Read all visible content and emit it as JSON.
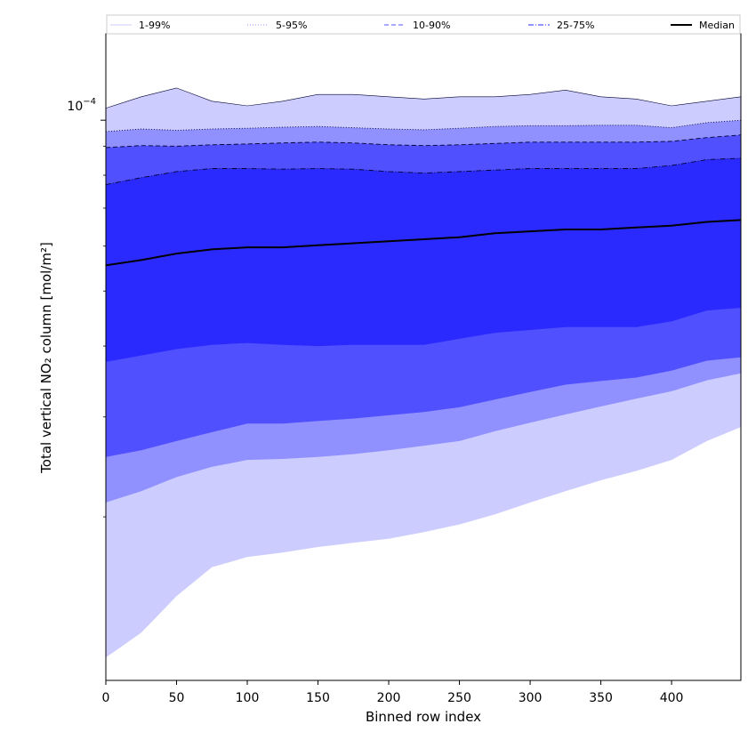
{
  "chart_data": {
    "type": "area",
    "xlabel": "Binned row index",
    "ylabel": "Total vertical NO₂ column [mol/m²]",
    "xlim": [
      0,
      449
    ],
    "ylim": [
      1.03e-05,
      0.000142
    ],
    "yscale": "log",
    "x_ticks": [
      0,
      50,
      100,
      150,
      200,
      250,
      300,
      350,
      400
    ],
    "y_major_tick": {
      "value": 0.0001,
      "label_base": "10",
      "label_exp": "−4"
    },
    "y_minor_ticks": [
      2e-05,
      3e-05,
      4e-05,
      5e-05,
      6e-05,
      7e-05,
      8e-05,
      9e-05
    ],
    "legend_position": "top",
    "x": [
      0,
      25,
      50,
      75,
      100,
      125,
      150,
      175,
      200,
      225,
      250,
      275,
      300,
      325,
      350,
      375,
      400,
      425,
      449
    ],
    "series": [
      {
        "name": "1-99%",
        "low": [
          1.13e-05,
          1.25e-05,
          1.45e-05,
          1.63e-05,
          1.7e-05,
          1.73e-05,
          1.77e-05,
          1.8e-05,
          1.83e-05,
          1.88e-05,
          1.94e-05,
          2.02e-05,
          2.12e-05,
          2.22e-05,
          2.32e-05,
          2.41e-05,
          2.52e-05,
          2.72e-05,
          2.88e-05
        ],
        "high": [
          0.000105,
          0.00011,
          0.000114,
          0.000108,
          0.000106,
          0.000108,
          0.000111,
          0.000111,
          0.00011,
          0.000109,
          0.00011,
          0.00011,
          0.000111,
          0.000113,
          0.00011,
          0.000109,
          0.000106,
          0.000108,
          0.00011
        ],
        "color": "#ccccff",
        "linestyle": "solid"
      },
      {
        "name": "5-95%",
        "low": [
          2.12e-05,
          2.22e-05,
          2.35e-05,
          2.45e-05,
          2.52e-05,
          2.53e-05,
          2.55e-05,
          2.58e-05,
          2.62e-05,
          2.67e-05,
          2.72e-05,
          2.83e-05,
          2.93e-05,
          3.03e-05,
          3.13e-05,
          3.23e-05,
          3.33e-05,
          3.48e-05,
          3.58e-05
        ],
        "high": [
          9.55e-05,
          9.65e-05,
          9.6e-05,
          9.65e-05,
          9.68e-05,
          9.72e-05,
          9.75e-05,
          9.7e-05,
          9.65e-05,
          9.62e-05,
          9.68e-05,
          9.75e-05,
          9.78e-05,
          9.78e-05,
          9.8e-05,
          9.8e-05,
          9.7e-05,
          9.9e-05,
          0.0001
        ],
        "color": "#9090ff",
        "linestyle": "dotted"
      },
      {
        "name": "10-90%",
        "low": [
          2.55e-05,
          2.62e-05,
          2.72e-05,
          2.82e-05,
          2.92e-05,
          2.92e-05,
          2.95e-05,
          2.98e-05,
          3.02e-05,
          3.06e-05,
          3.12e-05,
          3.22e-05,
          3.32e-05,
          3.42e-05,
          3.47e-05,
          3.52e-05,
          3.62e-05,
          3.77e-05,
          3.82e-05
        ],
        "high": [
          8.95e-05,
          9.02e-05,
          9e-05,
          9.05e-05,
          9.08e-05,
          9.12e-05,
          9.15e-05,
          9.12e-05,
          9.05e-05,
          9.02e-05,
          9.05e-05,
          9.1e-05,
          9.15e-05,
          9.15e-05,
          9.15e-05,
          9.15e-05,
          9.18e-05,
          9.32e-05,
          9.42e-05
        ],
        "color": "#5050ff",
        "linestyle": "dashed"
      },
      {
        "name": "25-75%",
        "low": [
          3.75e-05,
          3.85e-05,
          3.95e-05,
          4.02e-05,
          4.05e-05,
          4.02e-05,
          4e-05,
          4.02e-05,
          4.02e-05,
          4.02e-05,
          4.12e-05,
          4.22e-05,
          4.27e-05,
          4.32e-05,
          4.32e-05,
          4.32e-05,
          4.42e-05,
          4.62e-05,
          4.67e-05
        ],
        "high": [
          7.7e-05,
          7.92e-05,
          8.12e-05,
          8.22e-05,
          8.22e-05,
          8.2e-05,
          8.22e-05,
          8.2e-05,
          8.12e-05,
          8.07e-05,
          8.12e-05,
          8.17e-05,
          8.22e-05,
          8.22e-05,
          8.22e-05,
          8.22e-05,
          8.32e-05,
          8.52e-05,
          8.57e-05
        ],
        "color": "#2a2aff",
        "linestyle": "dashdot"
      }
    ],
    "median": {
      "name": "Median",
      "values": [
        5.55e-05,
        5.67e-05,
        5.82e-05,
        5.92e-05,
        5.97e-05,
        5.97e-05,
        6.02e-05,
        6.07e-05,
        6.12e-05,
        6.17e-05,
        6.22e-05,
        6.32e-05,
        6.37e-05,
        6.42e-05,
        6.42e-05,
        6.47e-05,
        6.52e-05,
        6.62e-05,
        6.67e-05
      ],
      "color": "#000000"
    }
  }
}
